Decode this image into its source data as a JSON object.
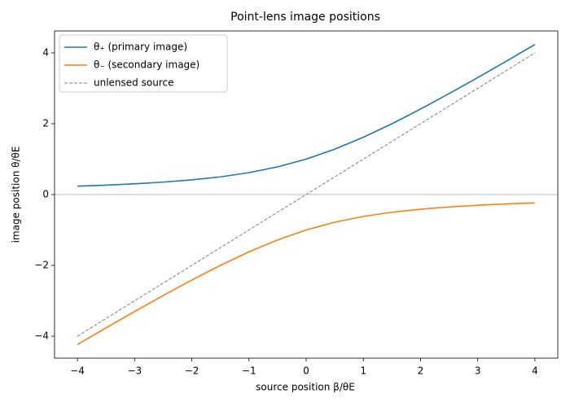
{
  "chart_data": {
    "type": "line",
    "title": "Point-lens image positions",
    "x_label": "source position β/θE",
    "y_label": "image position θ/θE",
    "x": [
      -4,
      -3.5,
      -3,
      -2.5,
      -2,
      -1.5,
      -1,
      -0.5,
      0,
      0.5,
      1,
      1.5,
      2,
      2.5,
      3,
      3.5,
      4
    ],
    "series": [
      {
        "name": "θ₊ (primary image)",
        "color": "#1f77b4",
        "dashed": false,
        "values": [
          0.2361,
          0.2656,
          0.3028,
          0.3508,
          0.4142,
          0.5,
          0.618,
          0.7808,
          1,
          1.2808,
          1.618,
          2.0,
          2.4142,
          2.8508,
          3.3028,
          3.7656,
          4.2361
        ]
      },
      {
        "name": "θ₋ (secondary image)",
        "color": "#ff7f0e",
        "dashed": false,
        "values": [
          -4.2361,
          -3.7656,
          -3.3028,
          -2.8508,
          -2.4142,
          -2.0,
          -1.618,
          -1.2808,
          -1,
          -0.7808,
          -0.618,
          -0.5,
          -0.4142,
          -0.3508,
          -0.3028,
          -0.2656,
          -0.2361
        ]
      },
      {
        "name": "unlensed source",
        "color": "#808080",
        "dashed": true,
        "values": [
          -4,
          -3.5,
          -3,
          -2.5,
          -2,
          -1.5,
          -1,
          -0.5,
          0,
          0.5,
          1,
          1.5,
          2,
          2.5,
          3,
          3.5,
          4
        ]
      }
    ],
    "hline": 0,
    "hline_color": "#a0a0a0",
    "xlim": [
      -4.4,
      4.4
    ],
    "ylim": [
      -4.62,
      4.62
    ],
    "xticks": [
      {
        "value": -4,
        "label": "−4"
      },
      {
        "value": -3,
        "label": "−3"
      },
      {
        "value": -2,
        "label": "−2"
      },
      {
        "value": -1,
        "label": "−1"
      },
      0,
      1,
      2,
      3,
      4
    ],
    "yticks": [
      {
        "value": -4,
        "label": "−4"
      },
      {
        "value": -2,
        "label": "−2"
      },
      0,
      2,
      4
    ],
    "grid": false,
    "legend": "upper-left"
  }
}
